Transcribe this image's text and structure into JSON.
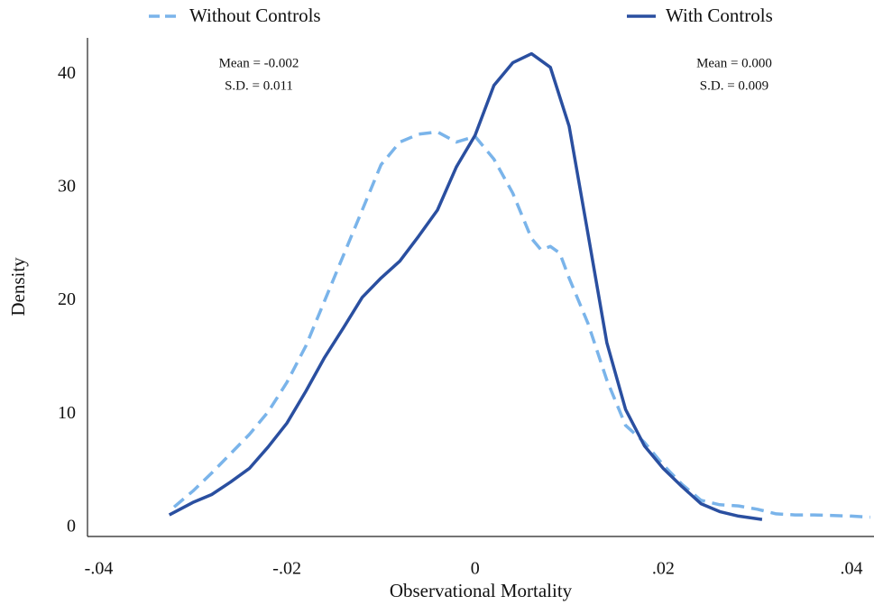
{
  "chart_data": {
    "type": "line",
    "xlabel": "Observational Mortality",
    "ylabel": "Density",
    "xlim": [
      -0.0412,
      0.0424
    ],
    "ylim": [
      -0.8,
      43.2
    ],
    "xticks": [
      {
        "value": -0.04,
        "label": "-.04"
      },
      {
        "value": -0.02,
        "label": "-.02"
      },
      0,
      {
        "value": 0.02,
        "label": ".02"
      },
      {
        "value": 0.04,
        "label": ".04"
      }
    ],
    "yticks": [
      0,
      10,
      20,
      30,
      40
    ],
    "grid": false,
    "annotations": [
      [
        "Mean = -0.002",
        "S.D. = 0.011"
      ],
      [
        "Mean = 0.000",
        "S.D. = 0.009"
      ]
    ],
    "series": [
      {
        "name": "Without Controls",
        "color": "#7ab4ea",
        "line_style": "dashed",
        "x": [
          -0.032,
          -0.03,
          -0.028,
          -0.026,
          -0.024,
          -0.022,
          -0.02,
          -0.018,
          -0.016,
          -0.014,
          -0.012,
          -0.01,
          -0.008,
          -0.006,
          -0.004,
          -0.002,
          0,
          0.002,
          0.004,
          0.006,
          0.007,
          0.008,
          0.009,
          0.01,
          0.012,
          0.014,
          0.016,
          0.018,
          0.02,
          0.022,
          0.024,
          0.026,
          0.028,
          0.03,
          0.032,
          0.034,
          0.036,
          0.04,
          0.042
        ],
        "values": [
          1.8,
          3.2,
          4.8,
          6.5,
          8.2,
          10.2,
          12.8,
          16,
          20,
          24,
          28,
          32,
          34,
          34.7,
          34.9,
          34,
          34.5,
          32.5,
          29.5,
          25.5,
          24.5,
          24.8,
          24.2,
          22,
          18,
          13,
          9,
          7.5,
          5.5,
          3.8,
          2.4,
          2,
          1.9,
          1.6,
          1.2,
          1.1,
          1.1,
          1.0,
          0.9
        ]
      },
      {
        "name": "With Controls",
        "color": "#2a4fa0",
        "line_style": "solid",
        "x": [
          -0.0325,
          -0.03,
          -0.028,
          -0.026,
          -0.024,
          -0.022,
          -0.02,
          -0.018,
          -0.016,
          -0.014,
          -0.012,
          -0.01,
          -0.008,
          -0.006,
          -0.004,
          -0.002,
          0,
          0.002,
          0.004,
          0.006,
          0.008,
          0.01,
          0.012,
          0.014,
          0.016,
          0.018,
          0.02,
          0.022,
          0.024,
          0.026,
          0.028,
          0.0305
        ],
        "values": [
          1.1,
          2.2,
          2.9,
          4.0,
          5.2,
          7.1,
          9.2,
          12.0,
          15,
          17.6,
          20.3,
          22,
          23.5,
          25.7,
          28,
          31.8,
          34.6,
          39,
          41,
          41.8,
          40.6,
          35.4,
          25.9,
          16.3,
          10.4,
          7.2,
          5.2,
          3.6,
          2.1,
          1.4,
          1.0,
          0.7
        ]
      }
    ]
  }
}
